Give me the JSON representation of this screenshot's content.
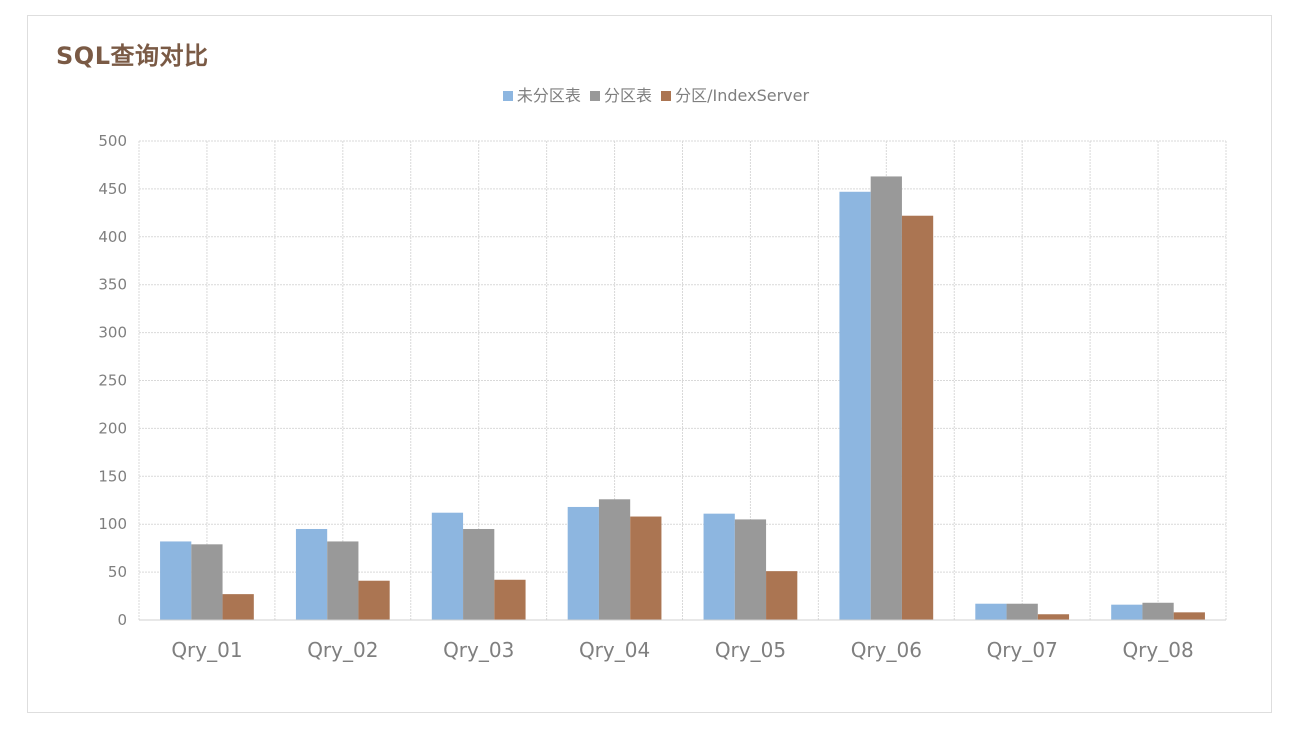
{
  "chart_data": {
    "type": "bar",
    "title": "SQL查询对比",
    "xlabel": "",
    "ylabel": "",
    "ylim": [
      0,
      500
    ],
    "yticks": [
      0,
      50,
      100,
      150,
      200,
      250,
      300,
      350,
      400,
      450,
      500
    ],
    "grid": true,
    "legend_position": "top-center",
    "categories": [
      "Qry_01",
      "Qry_02",
      "Qry_03",
      "Qry_04",
      "Qry_05",
      "Qry_06",
      "Qry_07",
      "Qry_08"
    ],
    "series": [
      {
        "name": "未分区表",
        "color": "#8db6e0",
        "values": [
          82,
          95,
          112,
          118,
          111,
          447,
          17,
          16
        ]
      },
      {
        "name": "分区表",
        "color": "#999999",
        "values": [
          79,
          82,
          95,
          126,
          105,
          463,
          17,
          18
        ]
      },
      {
        "name": "分区/IndexServer",
        "color": "#ab7552",
        "values": [
          27,
          41,
          42,
          108,
          51,
          422,
          6,
          8
        ]
      }
    ]
  }
}
